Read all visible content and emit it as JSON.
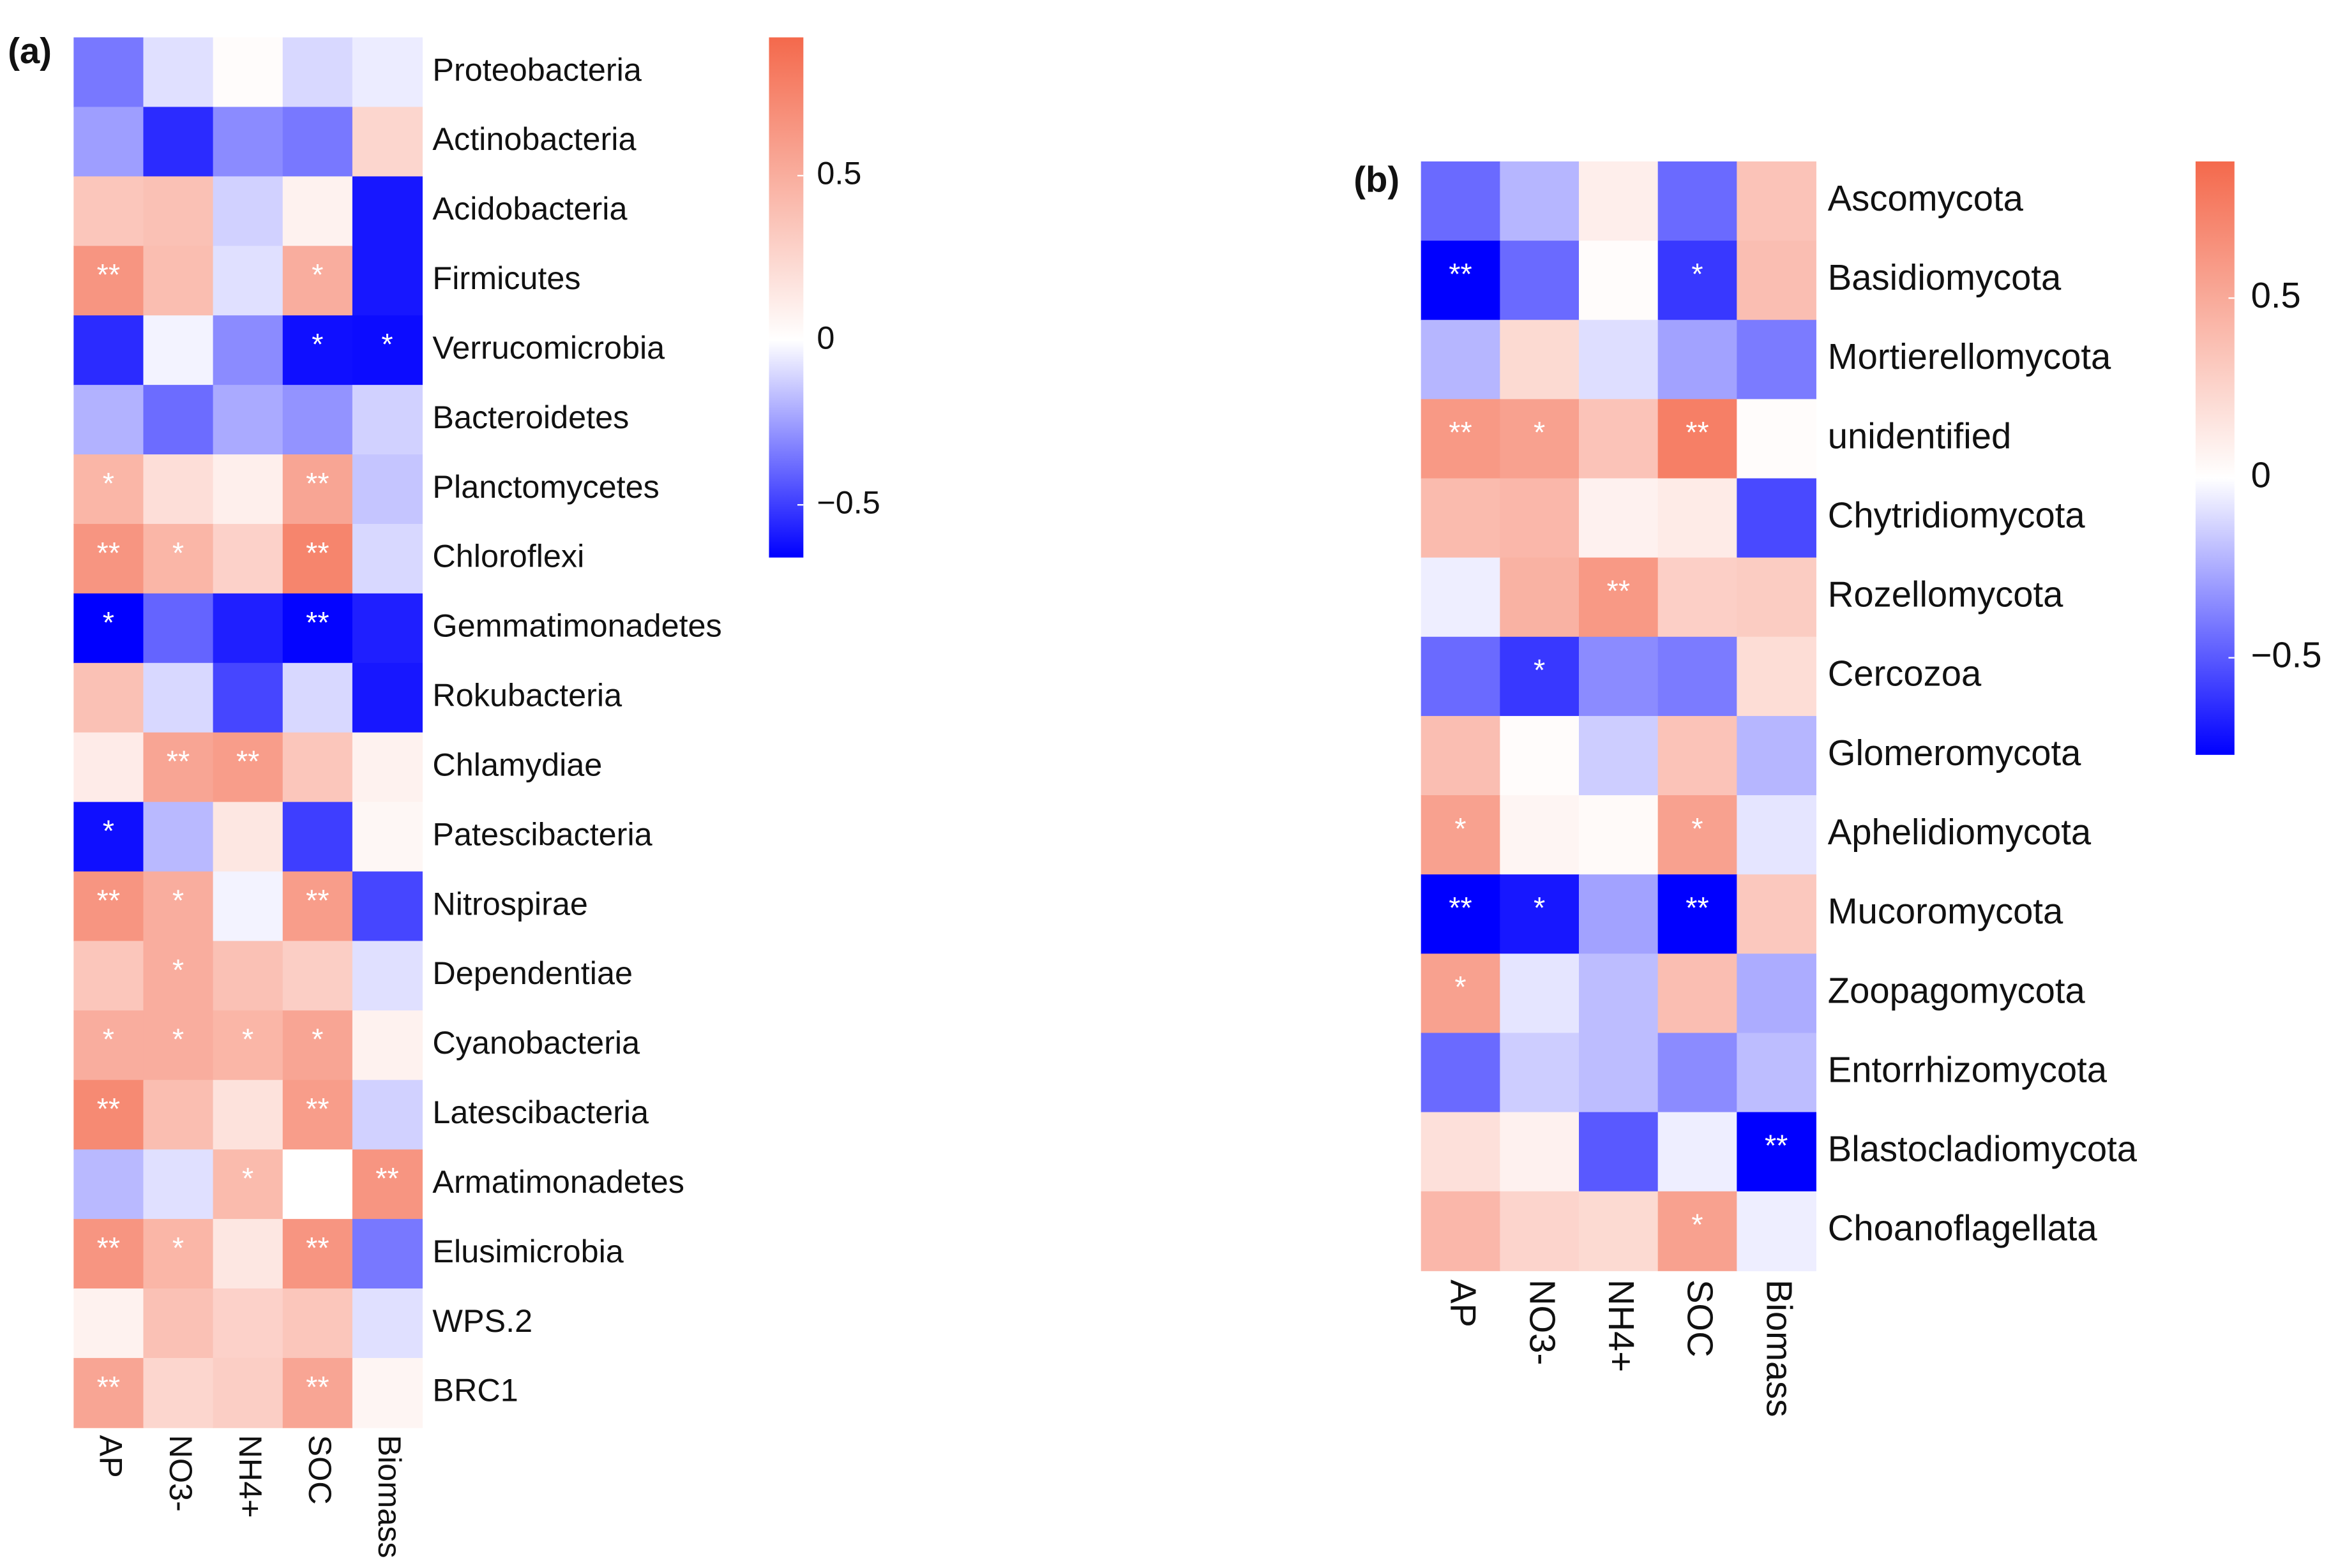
{
  "chart_data": [
    {
      "type": "heatmap",
      "panel_label": "(a)",
      "columns": [
        "AP",
        "NO3-",
        "NH4+",
        "SOC",
        "Biomass"
      ],
      "rows": [
        "Proteobacteria",
        "Actinobacteria",
        "Acidobacteria",
        "Firmicutes",
        "Verrucomicrobia",
        "Bacteroidetes",
        "Planctomycetes",
        "Chloroflexi",
        "Gemmatimonadetes",
        "Rokubacteria",
        "Chlamydiae",
        "Patescibacteria",
        "Nitrospirae",
        "Dependentiae",
        "Cyanobacteria",
        "Latescibacteria",
        "Armatimonadetes",
        "Elusimicrobia",
        "WPS.2",
        "BRC1"
      ],
      "values": [
        [
          -0.35,
          -0.08,
          0.02,
          -0.1,
          -0.05
        ],
        [
          -0.25,
          -0.55,
          -0.3,
          -0.35,
          0.25
        ],
        [
          0.35,
          0.38,
          -0.12,
          0.08,
          -0.6
        ],
        [
          0.65,
          0.4,
          -0.08,
          0.5,
          -0.6
        ],
        [
          -0.55,
          -0.03,
          -0.3,
          -0.62,
          -0.63
        ],
        [
          -0.2,
          -0.38,
          -0.22,
          -0.28,
          -0.12
        ],
        [
          0.45,
          0.2,
          0.1,
          0.55,
          -0.15
        ],
        [
          0.65,
          0.45,
          0.28,
          0.75,
          -0.1
        ],
        [
          -0.66,
          -0.4,
          -0.58,
          -0.65,
          -0.58
        ],
        [
          0.38,
          -0.1,
          -0.48,
          -0.1,
          -0.6
        ],
        [
          0.12,
          0.55,
          0.6,
          0.35,
          0.08
        ],
        [
          -0.62,
          -0.18,
          0.15,
          -0.5,
          0.05
        ],
        [
          0.65,
          0.5,
          -0.03,
          0.6,
          -0.48
        ],
        [
          0.35,
          0.5,
          0.38,
          0.3,
          -0.08
        ],
        [
          0.5,
          0.5,
          0.45,
          0.55,
          0.08
        ],
        [
          0.72,
          0.4,
          0.18,
          0.6,
          -0.12
        ],
        [
          -0.18,
          -0.08,
          0.42,
          0.0,
          0.65
        ],
        [
          0.65,
          0.45,
          0.15,
          0.65,
          -0.35
        ],
        [
          0.08,
          0.38,
          0.28,
          0.35,
          -0.08
        ],
        [
          0.55,
          0.25,
          0.3,
          0.55,
          0.06
        ]
      ],
      "annotations": [
        [
          null,
          null,
          null,
          null,
          null
        ],
        [
          null,
          null,
          null,
          null,
          null
        ],
        [
          null,
          null,
          null,
          null,
          null
        ],
        [
          "**",
          null,
          null,
          "*",
          null
        ],
        [
          null,
          null,
          null,
          "*",
          "*"
        ],
        [
          null,
          null,
          null,
          null,
          null
        ],
        [
          "*",
          null,
          null,
          "**",
          null
        ],
        [
          "**",
          "*",
          null,
          "**",
          null
        ],
        [
          "*",
          null,
          null,
          "**",
          null
        ],
        [
          null,
          null,
          null,
          null,
          null
        ],
        [
          null,
          "**",
          "**",
          null,
          null
        ],
        [
          "*",
          null,
          null,
          null,
          null
        ],
        [
          "**",
          "*",
          null,
          "**",
          null
        ],
        [
          null,
          "*",
          null,
          null,
          null
        ],
        [
          "*",
          "*",
          "*",
          "*",
          null
        ],
        [
          "**",
          null,
          null,
          "**",
          null
        ],
        [
          null,
          null,
          "*",
          null,
          "**"
        ],
        [
          "**",
          "*",
          null,
          "**",
          null
        ],
        [
          null,
          null,
          null,
          null,
          null
        ],
        [
          "**",
          null,
          null,
          "**",
          null
        ]
      ],
      "colors": {
        "low": "#0000ff",
        "mid": "#ffffff",
        "high": "#f4694c"
      },
      "colorbar_lim": [
        -0.66,
        0.92
      ],
      "colorbar_ticks": [
        0.5,
        0,
        {
          "value": -0.5,
          "label": "−0.5"
        }
      ]
    },
    {
      "type": "heatmap",
      "panel_label": "(b)",
      "columns": [
        "AP",
        "NO3-",
        "NH4+",
        "SOC",
        "Biomass"
      ],
      "rows": [
        "Ascomycota",
        "Basidiomycota",
        "Mortierellomycota",
        "unidentified",
        "Chytridiomycota",
        "Rozellomycota",
        "Cercozoa",
        "Glomeromycota",
        "Aphelidiomycota",
        "Mucoromycota",
        "Zoopagomycota",
        "Entorrhizomycota",
        "Blastocladiomycota",
        "Choanoflagellata"
      ],
      "values": [
        [
          -0.45,
          -0.22,
          0.1,
          -0.45,
          0.35
        ],
        [
          -0.77,
          -0.45,
          0.02,
          -0.6,
          0.38
        ],
        [
          -0.22,
          0.22,
          -0.1,
          -0.28,
          -0.4
        ],
        [
          0.6,
          0.55,
          0.35,
          0.75,
          0.02
        ],
        [
          0.4,
          0.42,
          0.08,
          0.12,
          -0.55
        ],
        [
          -0.05,
          0.45,
          0.6,
          0.28,
          0.3
        ],
        [
          -0.45,
          -0.6,
          -0.35,
          -0.4,
          0.2
        ],
        [
          0.38,
          0.02,
          -0.15,
          0.35,
          -0.22
        ],
        [
          0.55,
          0.06,
          0.03,
          0.55,
          -0.08
        ],
        [
          -0.77,
          -0.7,
          -0.28,
          -0.77,
          0.32
        ],
        [
          0.55,
          -0.08,
          -0.2,
          0.38,
          -0.25
        ],
        [
          -0.45,
          -0.15,
          -0.2,
          -0.35,
          -0.2
        ],
        [
          0.18,
          0.08,
          -0.5,
          -0.05,
          -0.77
        ],
        [
          0.42,
          0.25,
          0.22,
          0.55,
          -0.05
        ]
      ],
      "annotations": [
        [
          null,
          null,
          null,
          null,
          null
        ],
        [
          "**",
          null,
          null,
          "*",
          null
        ],
        [
          null,
          null,
          null,
          null,
          null
        ],
        [
          "**",
          "*",
          null,
          "**",
          null
        ],
        [
          null,
          null,
          null,
          null,
          null
        ],
        [
          null,
          null,
          "**",
          null,
          null
        ],
        [
          null,
          "*",
          null,
          null,
          null
        ],
        [
          null,
          null,
          null,
          null,
          null
        ],
        [
          "*",
          null,
          null,
          "*",
          null
        ],
        [
          "**",
          "*",
          null,
          "**",
          null
        ],
        [
          "*",
          null,
          null,
          null,
          null
        ],
        [
          null,
          null,
          null,
          null,
          null
        ],
        [
          null,
          null,
          null,
          null,
          "**"
        ],
        [
          null,
          null,
          null,
          "*",
          null
        ]
      ],
      "colors": {
        "low": "#0000ff",
        "mid": "#ffffff",
        "high": "#f4694c"
      },
      "colorbar_lim": [
        -0.77,
        0.88
      ],
      "colorbar_ticks": [
        0.5,
        0,
        {
          "value": -0.5,
          "label": "−0.5"
        }
      ]
    }
  ]
}
